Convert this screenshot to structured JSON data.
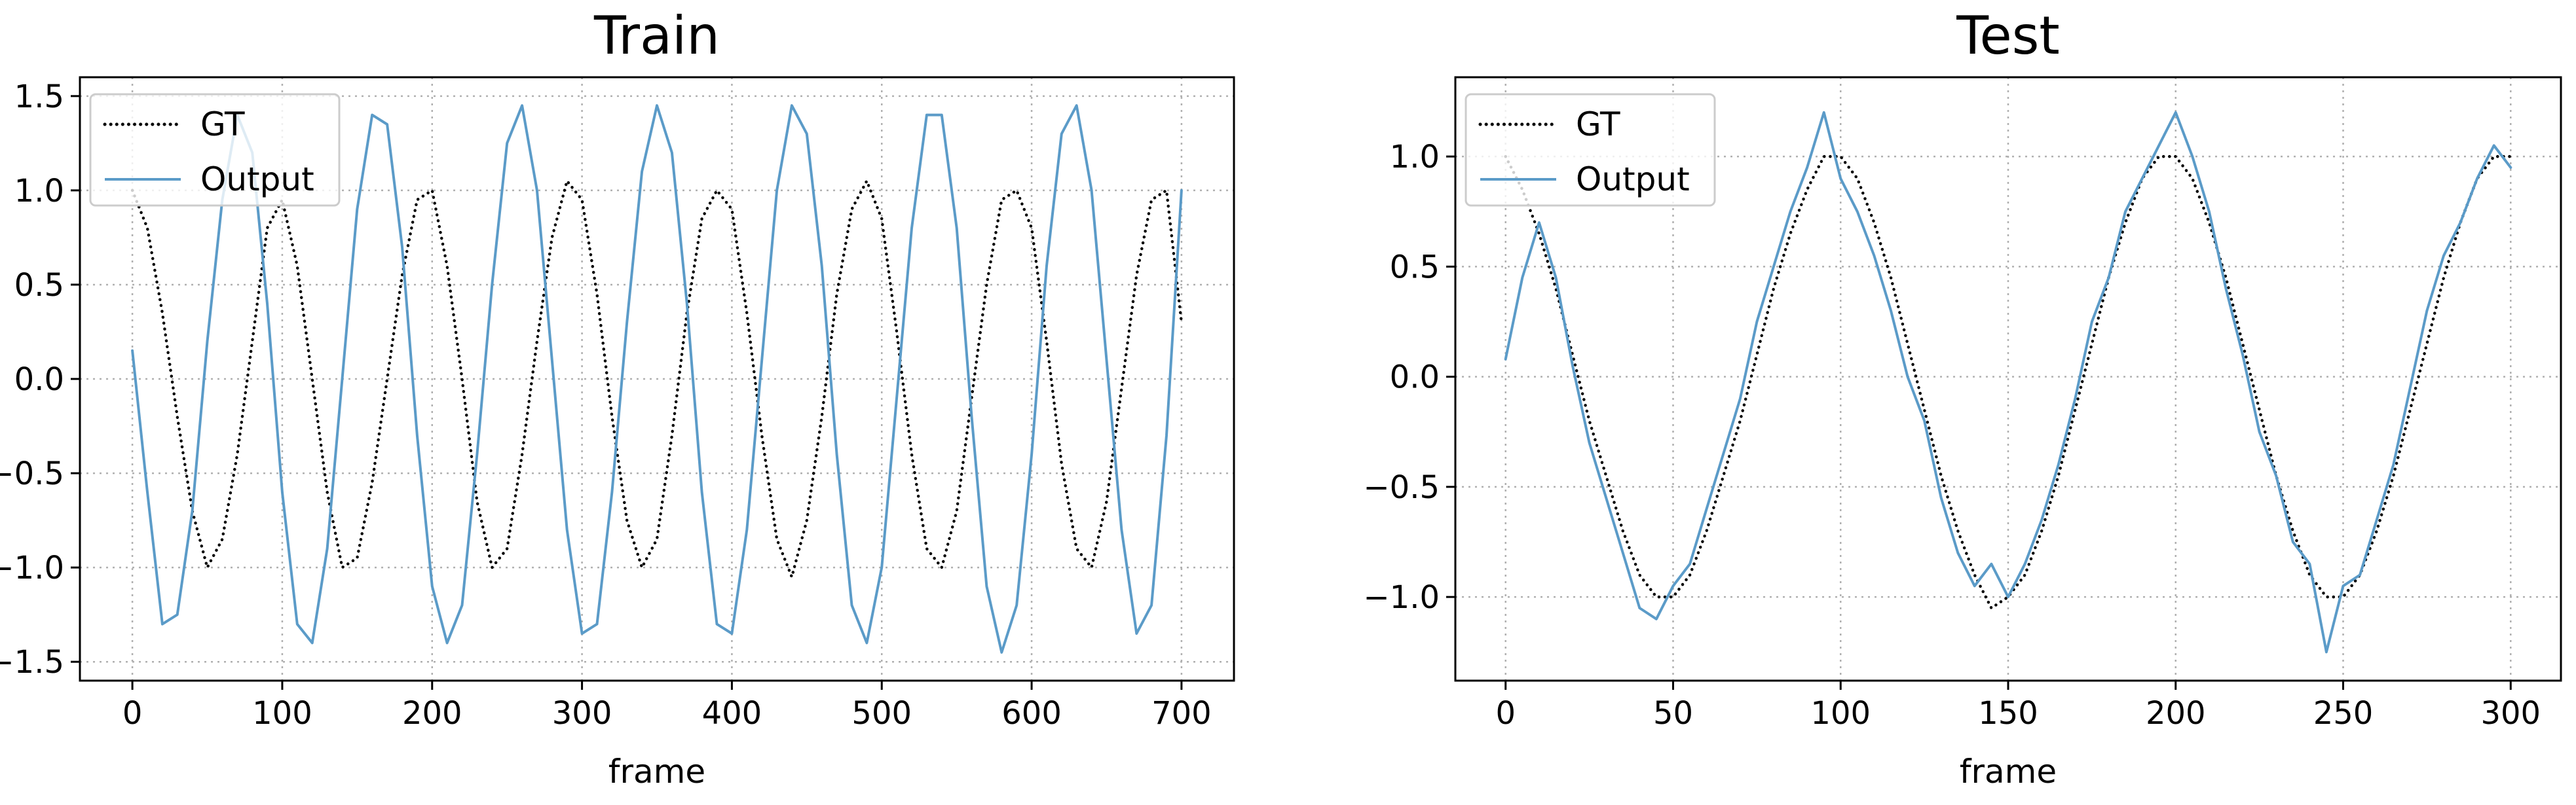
{
  "figure": {
    "colors": {
      "gt": "#000000",
      "output": "#5b9bc8",
      "grid": "#b0b0b0"
    }
  },
  "chart_data": [
    {
      "type": "line",
      "title": "Train",
      "xlabel": "frame",
      "ylabel": "",
      "xlim": [
        -35,
        735
      ],
      "ylim": [
        -1.6,
        1.6
      ],
      "xticks": [
        0,
        100,
        200,
        300,
        400,
        500,
        600,
        700
      ],
      "xtick_labels": [
        "0",
        "100",
        "200",
        "300",
        "400",
        "500",
        "600",
        "700"
      ],
      "yticks": [
        -1.5,
        -1.0,
        -0.5,
        0.0,
        0.5,
        1.0,
        1.5
      ],
      "ytick_labels": [
        "−1.5",
        "−1.0",
        "−0.5",
        "0.0",
        "0.5",
        "1.0",
        "1.5"
      ],
      "grid": true,
      "legend": "upper-left",
      "series": [
        {
          "name": "GT",
          "style": "dotted",
          "color": "#000000",
          "x": [
            0,
            10,
            20,
            30,
            40,
            50,
            60,
            70,
            80,
            90,
            100,
            110,
            120,
            130,
            140,
            150,
            160,
            170,
            180,
            190,
            200,
            210,
            220,
            230,
            240,
            250,
            260,
            270,
            280,
            290,
            300,
            310,
            320,
            330,
            340,
            350,
            360,
            370,
            380,
            390,
            400,
            410,
            420,
            430,
            440,
            450,
            460,
            470,
            480,
            490,
            500,
            510,
            520,
            530,
            540,
            550,
            560,
            570,
            580,
            590,
            600,
            610,
            620,
            630,
            640,
            650,
            660,
            670,
            680,
            690,
            700
          ],
          "y": [
            1.0,
            0.8,
            0.35,
            -0.2,
            -0.7,
            -1.0,
            -0.85,
            -0.4,
            0.2,
            0.8,
            0.95,
            0.6,
            0.0,
            -0.6,
            -1.0,
            -0.95,
            -0.55,
            0.0,
            0.55,
            0.95,
            1.0,
            0.6,
            0.0,
            -0.65,
            -1.0,
            -0.9,
            -0.4,
            0.2,
            0.75,
            1.05,
            0.95,
            0.45,
            -0.2,
            -0.75,
            -1.0,
            -0.85,
            -0.3,
            0.35,
            0.85,
            1.0,
            0.9,
            0.35,
            -0.3,
            -0.85,
            -1.05,
            -0.75,
            -0.2,
            0.45,
            0.9,
            1.05,
            0.85,
            0.25,
            -0.4,
            -0.9,
            -1.0,
            -0.7,
            -0.1,
            0.5,
            0.95,
            1.0,
            0.8,
            0.2,
            -0.45,
            -0.9,
            -1.0,
            -0.65,
            -0.05,
            0.55,
            0.95,
            1.0,
            0.3
          ]
        },
        {
          "name": "Output",
          "style": "solid",
          "color": "#5b9bc8",
          "x": [
            0,
            10,
            20,
            30,
            40,
            50,
            60,
            70,
            80,
            90,
            100,
            110,
            120,
            130,
            140,
            150,
            160,
            170,
            180,
            190,
            200,
            210,
            220,
            230,
            240,
            250,
            260,
            270,
            280,
            290,
            300,
            310,
            320,
            330,
            340,
            350,
            360,
            370,
            380,
            390,
            400,
            410,
            420,
            430,
            440,
            450,
            460,
            470,
            480,
            490,
            500,
            510,
            520,
            530,
            540,
            550,
            560,
            570,
            580,
            590,
            600,
            610,
            620,
            630,
            640,
            650,
            660,
            670,
            680,
            690,
            700
          ],
          "y": [
            0.15,
            -0.6,
            -1.3,
            -1.25,
            -0.7,
            0.2,
            0.95,
            1.4,
            1.2,
            0.4,
            -0.6,
            -1.3,
            -1.4,
            -0.9,
            0.0,
            0.9,
            1.4,
            1.35,
            0.7,
            -0.3,
            -1.1,
            -1.4,
            -1.2,
            -0.4,
            0.5,
            1.25,
            1.45,
            1.0,
            0.1,
            -0.8,
            -1.35,
            -1.3,
            -0.6,
            0.3,
            1.1,
            1.45,
            1.2,
            0.4,
            -0.6,
            -1.3,
            -1.35,
            -0.8,
            0.1,
            1.0,
            1.45,
            1.3,
            0.6,
            -0.4,
            -1.2,
            -1.4,
            -1.0,
            -0.1,
            0.8,
            1.4,
            1.4,
            0.8,
            -0.2,
            -1.1,
            -1.45,
            -1.2,
            -0.4,
            0.6,
            1.3,
            1.45,
            1.0,
            0.1,
            -0.8,
            -1.35,
            -1.2,
            -0.3,
            1.0
          ]
        }
      ]
    },
    {
      "type": "line",
      "title": "Test",
      "xlabel": "frame",
      "ylabel": "",
      "xlim": [
        -15,
        315
      ],
      "ylim": [
        -1.38,
        1.36
      ],
      "xticks": [
        0,
        50,
        100,
        150,
        200,
        250,
        300
      ],
      "xtick_labels": [
        "0",
        "50",
        "100",
        "150",
        "200",
        "250",
        "300"
      ],
      "yticks": [
        -1.0,
        -0.5,
        0.0,
        0.5,
        1.0
      ],
      "ytick_labels": [
        "−1.0",
        "−0.5",
        "0.0",
        "0.5",
        "1.0"
      ],
      "grid": true,
      "legend": "upper-left",
      "series": [
        {
          "name": "GT",
          "style": "dotted",
          "color": "#000000",
          "x": [
            0,
            5,
            10,
            15,
            20,
            25,
            30,
            35,
            40,
            45,
            50,
            55,
            60,
            65,
            70,
            75,
            80,
            85,
            90,
            95,
            100,
            105,
            110,
            115,
            120,
            125,
            130,
            135,
            140,
            145,
            150,
            155,
            160,
            165,
            170,
            175,
            180,
            185,
            190,
            195,
            200,
            205,
            210,
            215,
            220,
            225,
            230,
            235,
            240,
            245,
            250,
            255,
            260,
            265,
            270,
            275,
            280,
            285,
            290,
            295,
            300
          ],
          "y": [
            1.0,
            0.85,
            0.65,
            0.4,
            0.1,
            -0.2,
            -0.45,
            -0.7,
            -0.9,
            -1.0,
            -1.0,
            -0.9,
            -0.7,
            -0.45,
            -0.2,
            0.1,
            0.4,
            0.65,
            0.85,
            1.0,
            1.0,
            0.9,
            0.7,
            0.45,
            0.15,
            -0.15,
            -0.45,
            -0.7,
            -0.9,
            -1.05,
            -1.0,
            -0.9,
            -0.7,
            -0.45,
            -0.15,
            0.15,
            0.45,
            0.7,
            0.9,
            1.0,
            1.0,
            0.9,
            0.7,
            0.45,
            0.15,
            -0.15,
            -0.45,
            -0.7,
            -0.9,
            -1.0,
            -1.0,
            -0.9,
            -0.7,
            -0.45,
            -0.15,
            0.15,
            0.45,
            0.7,
            0.9,
            1.0,
            1.0
          ]
        },
        {
          "name": "Output",
          "style": "solid",
          "color": "#5b9bc8",
          "x": [
            0,
            5,
            10,
            15,
            20,
            25,
            30,
            35,
            40,
            45,
            50,
            55,
            60,
            65,
            70,
            75,
            80,
            85,
            90,
            95,
            100,
            105,
            110,
            115,
            120,
            125,
            130,
            135,
            140,
            145,
            150,
            155,
            160,
            165,
            170,
            175,
            180,
            185,
            190,
            195,
            200,
            205,
            210,
            215,
            220,
            225,
            230,
            235,
            240,
            245,
            250,
            255,
            260,
            265,
            270,
            275,
            280,
            285,
            290,
            295,
            300
          ],
          "y": [
            0.08,
            0.45,
            0.7,
            0.45,
            0.05,
            -0.3,
            -0.55,
            -0.8,
            -1.05,
            -1.1,
            -0.95,
            -0.85,
            -0.6,
            -0.35,
            -0.1,
            0.25,
            0.5,
            0.75,
            0.95,
            1.2,
            0.9,
            0.75,
            0.55,
            0.3,
            0.0,
            -0.2,
            -0.55,
            -0.8,
            -0.95,
            -0.85,
            -1.0,
            -0.85,
            -0.65,
            -0.4,
            -0.1,
            0.25,
            0.45,
            0.75,
            0.9,
            1.05,
            1.2,
            1.0,
            0.75,
            0.4,
            0.1,
            -0.25,
            -0.45,
            -0.75,
            -0.85,
            -1.25,
            -0.95,
            -0.9,
            -0.65,
            -0.4,
            -0.05,
            0.3,
            0.55,
            0.7,
            0.9,
            1.05,
            0.95
          ]
        }
      ]
    }
  ]
}
